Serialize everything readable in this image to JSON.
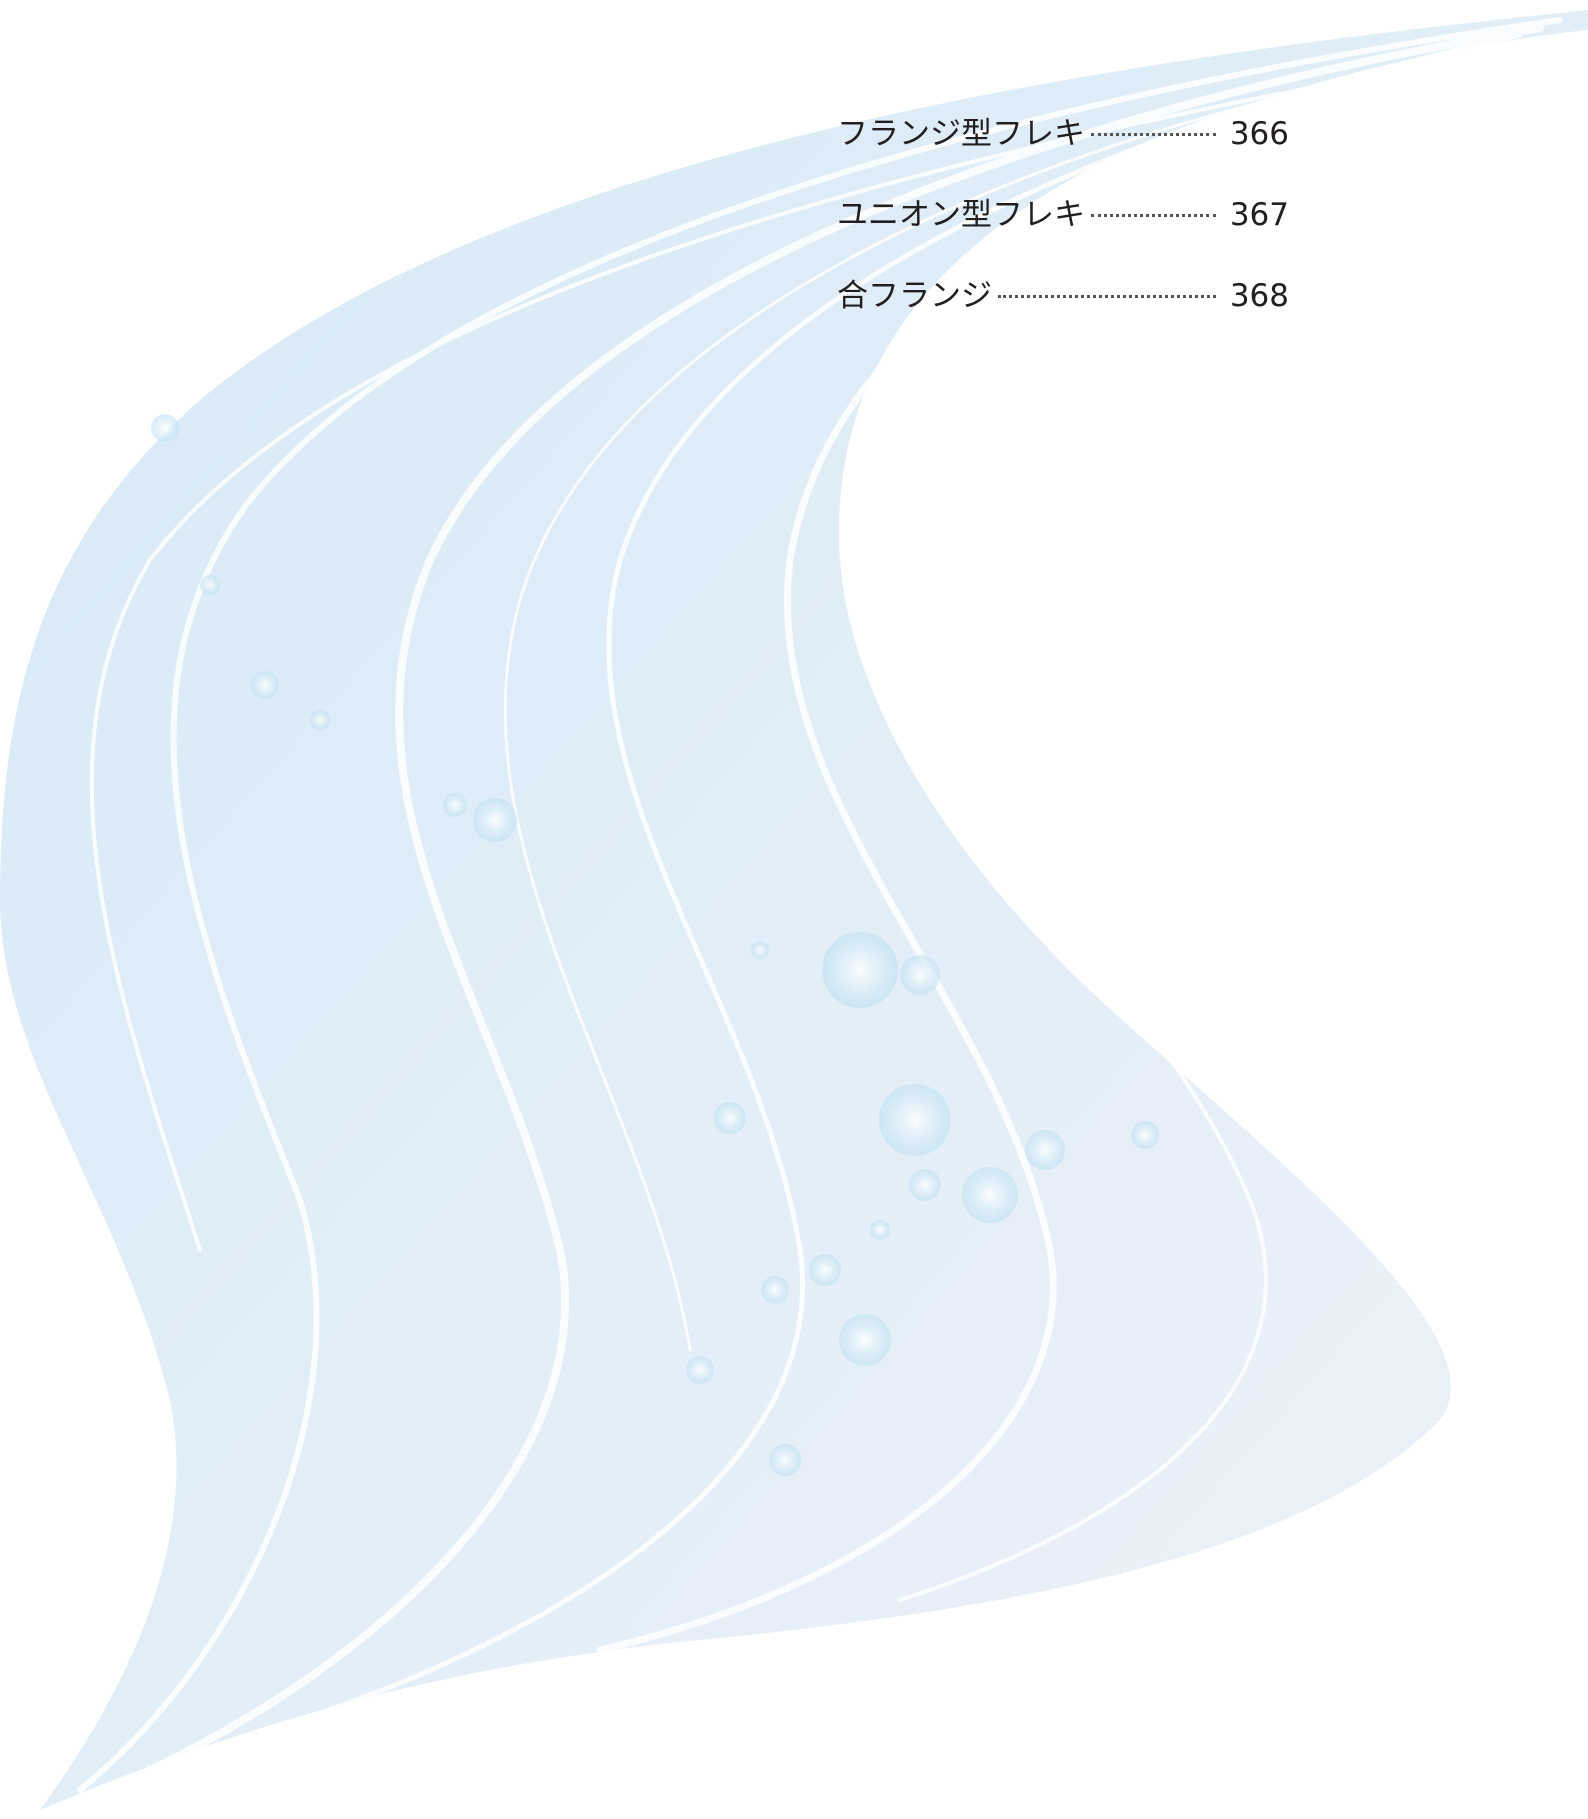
{
  "toc": {
    "entries": [
      {
        "title": "フランジ型フレキ",
        "page": 366
      },
      {
        "title": "ユニオン型フレキ",
        "page": 367
      },
      {
        "title": "合フランジ",
        "page": 368
      }
    ]
  }
}
